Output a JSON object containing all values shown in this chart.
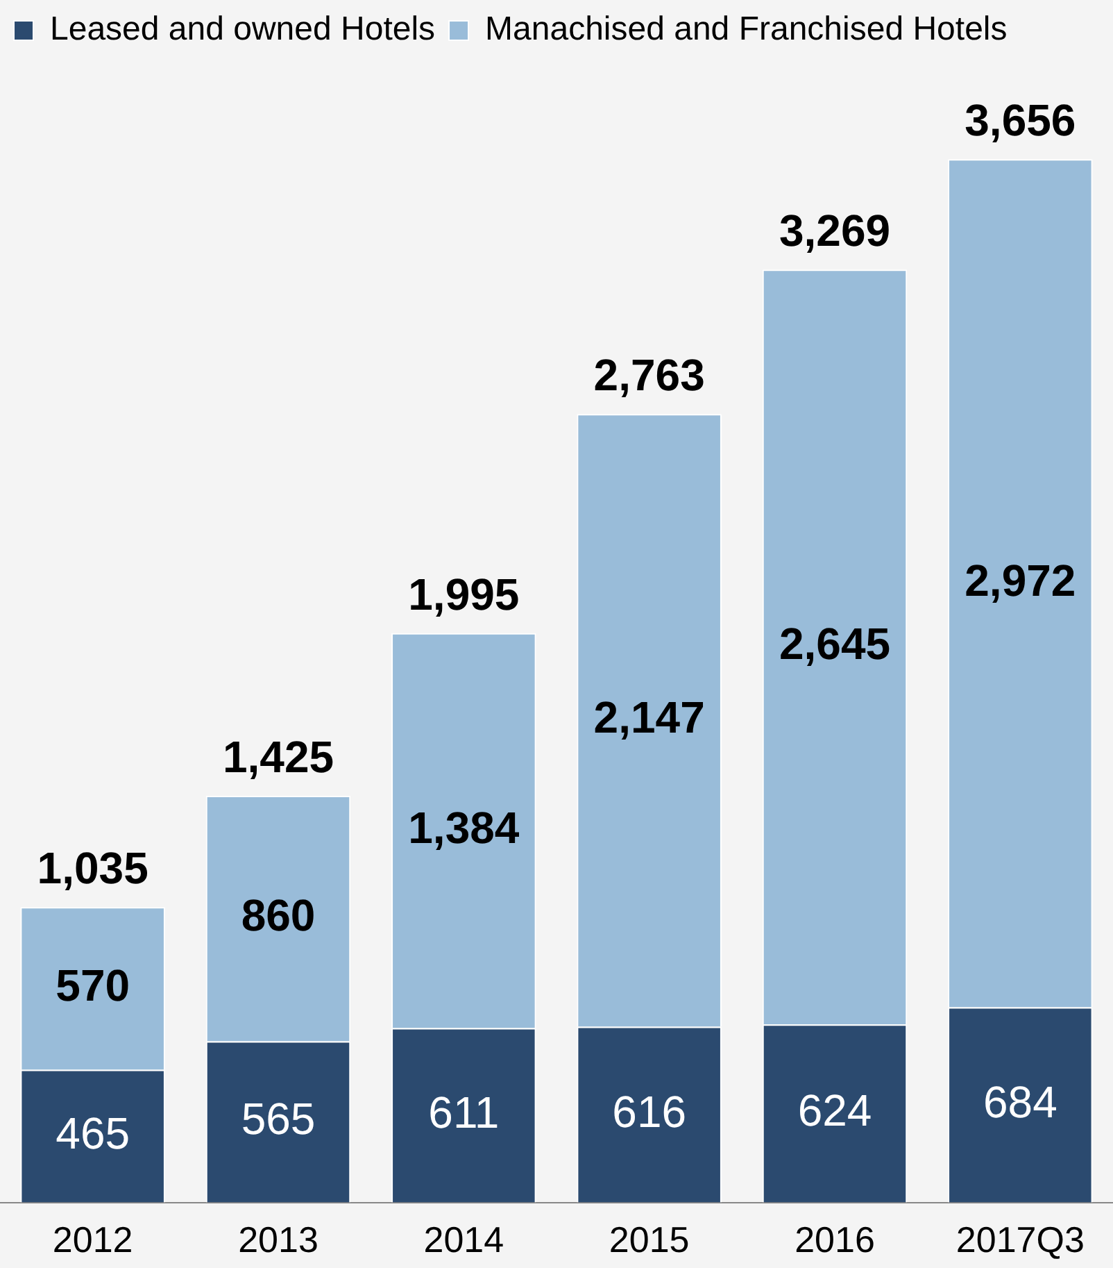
{
  "chart_data": {
    "type": "bar",
    "stacked": true,
    "legend": "top left",
    "grid": false,
    "categories": [
      "2012",
      "2013",
      "2014",
      "2015",
      "2016",
      "2017Q3"
    ],
    "series": [
      {
        "name": "Leased and owned Hotels",
        "color": "#2b4a6f",
        "values": [
          465,
          565,
          611,
          616,
          624,
          684
        ],
        "value_labels": [
          "465",
          "565",
          "611",
          "616",
          "624",
          "684"
        ]
      },
      {
        "name": "Manachised and Franchised Hotels",
        "color": "#99bcd9",
        "values": [
          570,
          860,
          1384,
          2147,
          2645,
          2972
        ],
        "value_labels": [
          "570",
          "860",
          "1,384",
          "2,147",
          "2,645",
          "2,972"
        ]
      }
    ],
    "totals": [
      "1,035",
      "1,425",
      "1,995",
      "2,763",
      "3,269",
      "3,656"
    ]
  }
}
